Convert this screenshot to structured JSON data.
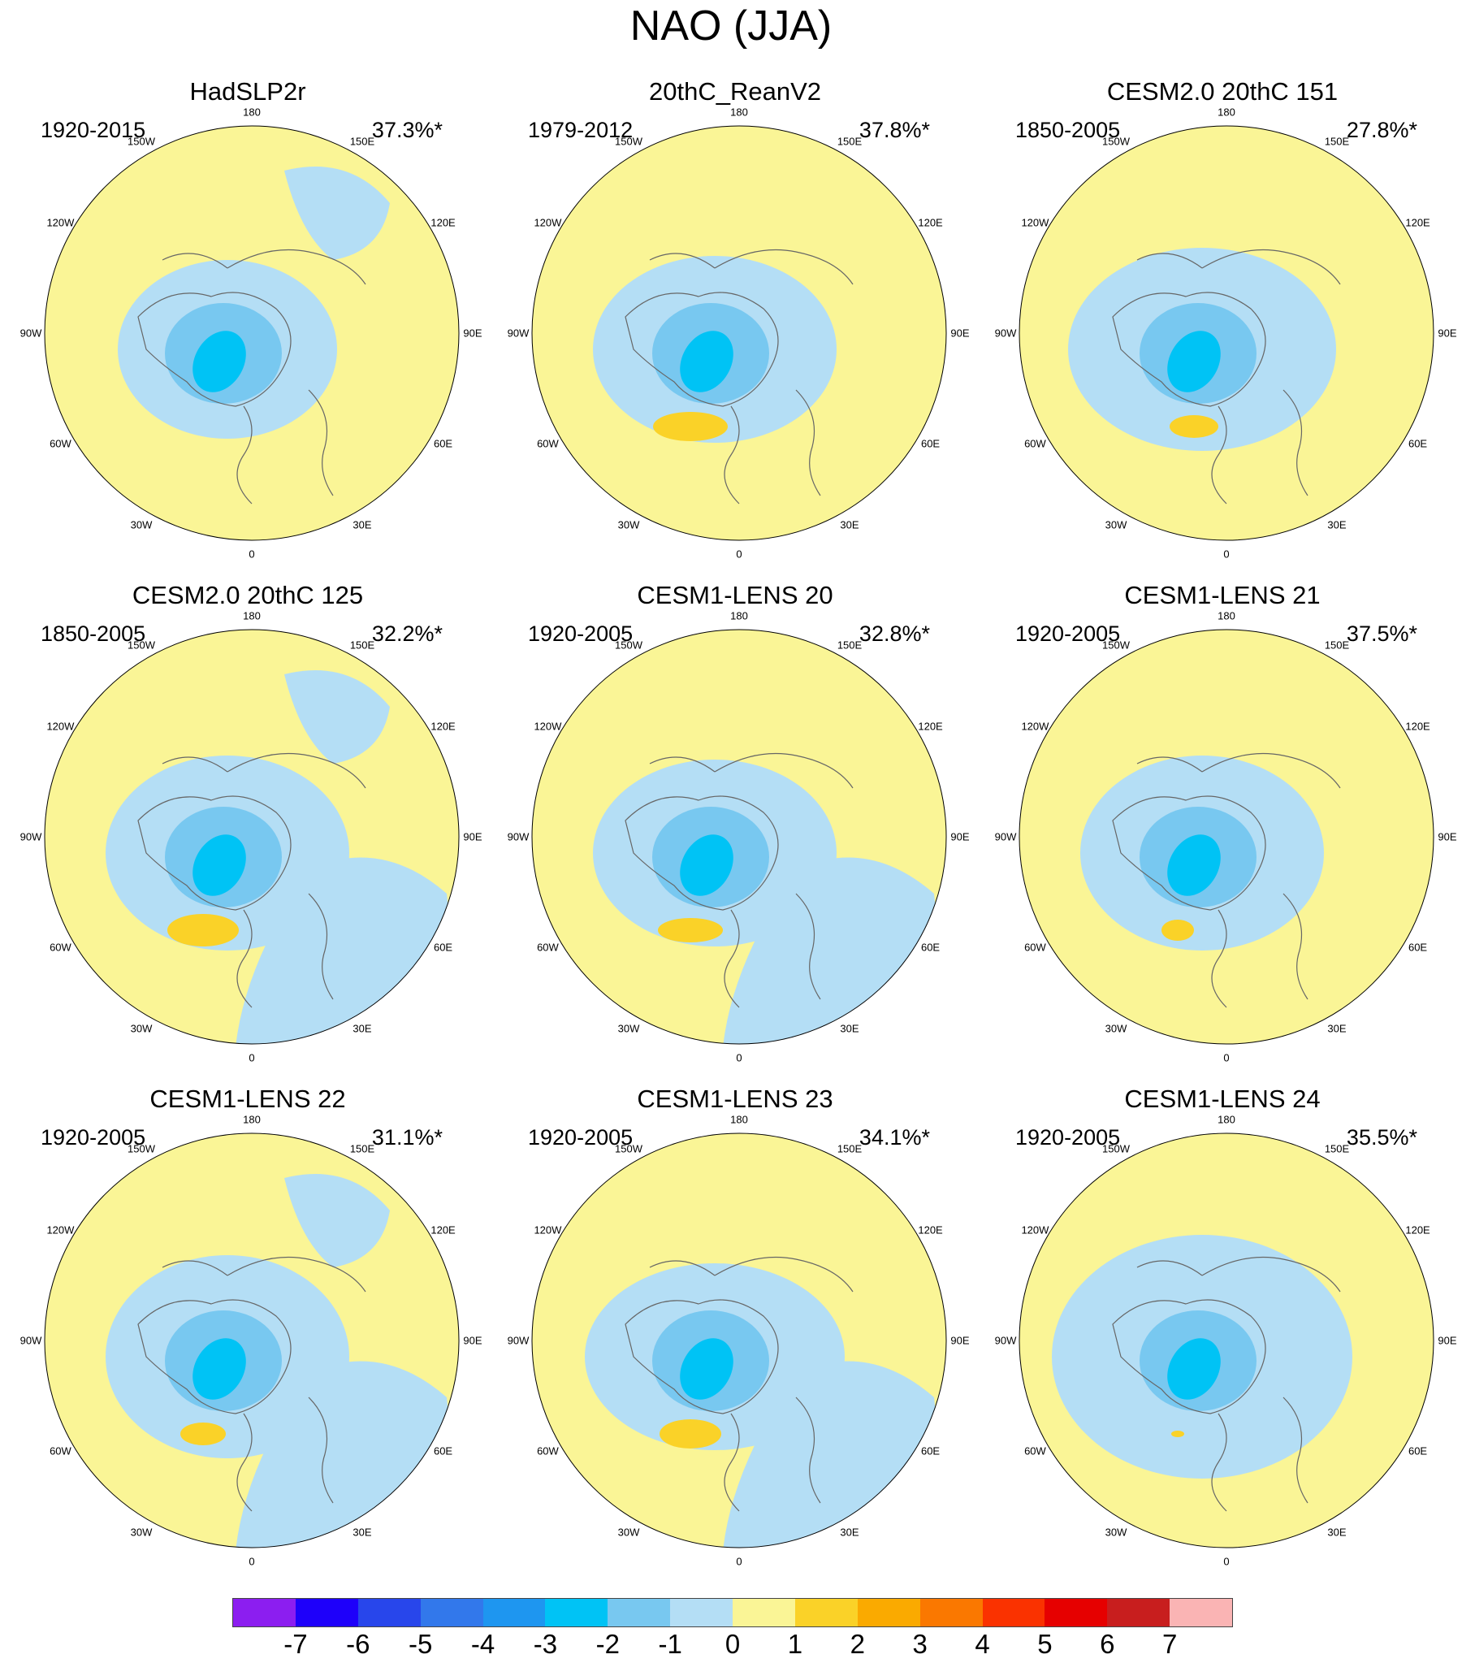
{
  "title": "NAO (JJA)",
  "lon_labels": [
    "180",
    "150E",
    "120E",
    "90E",
    "60E",
    "30E",
    "0",
    "30W",
    "60W",
    "90W",
    "120W",
    "150W"
  ],
  "panels": [
    {
      "title": "HadSLP2r",
      "period": "1920-2015",
      "percent": "37.3%*",
      "high": null
    },
    {
      "title": "20thC_ReanV2",
      "period": "1979-2012",
      "percent": "37.8%*",
      "high": {
        "rx": 46,
        "ry": 18,
        "shift": 0
      }
    },
    {
      "title": "CESM2.0 20thC 151",
      "period": "1850-2005",
      "percent": "27.8%*",
      "high": {
        "rx": 30,
        "ry": 14,
        "shift": 20
      }
    },
    {
      "title": "CESM2.0 20thC 125",
      "period": "1850-2005",
      "percent": "32.2%*",
      "high": {
        "rx": 44,
        "ry": 20,
        "shift": 0
      }
    },
    {
      "title": "CESM1-LENS 20",
      "period": "1920-2005",
      "percent": "32.8%*",
      "high": {
        "rx": 40,
        "ry": 15,
        "shift": 0
      }
    },
    {
      "title": "CESM1-LENS 21",
      "period": "1920-2005",
      "percent": "37.5%*",
      "high": {
        "rx": 20,
        "ry": 13,
        "shift": 0
      }
    },
    {
      "title": "CESM1-LENS 22",
      "period": "1920-2005",
      "percent": "31.1%*",
      "high": {
        "rx": 28,
        "ry": 14,
        "shift": 0
      }
    },
    {
      "title": "CESM1-LENS 23",
      "period": "1920-2005",
      "percent": "34.1%*",
      "high": {
        "rx": 38,
        "ry": 18,
        "shift": 0
      }
    },
    {
      "title": "CESM1-LENS 24",
      "period": "1920-2005",
      "percent": "35.5%*",
      "high": {
        "rx": 8,
        "ry": 4,
        "shift": 0
      }
    }
  ],
  "colorbar": {
    "labels": [
      "-7",
      "-6",
      "-5",
      "-4",
      "-3",
      "-2",
      "-1",
      "0",
      "1",
      "2",
      "3",
      "4",
      "5",
      "6",
      "7"
    ],
    "colors": [
      "#8c1ef0",
      "#1e00fa",
      "#2846eb",
      "#3278eb",
      "#1e96f0",
      "#00c3f5",
      "#78c8f0",
      "#b4def5",
      "#faf596",
      "#fad228",
      "#faaa00",
      "#fa7800",
      "#fa3200",
      "#e60000",
      "#c81e1e",
      "#fab4b4"
    ],
    "colors_used": {
      "positive_1": "#faf596",
      "positive_2": "#fad228",
      "negative_1": "#b4def5",
      "negative_2": "#78c8f0",
      "negative_3": "#3cbef5",
      "negative_4": "#00c3f5"
    }
  }
}
